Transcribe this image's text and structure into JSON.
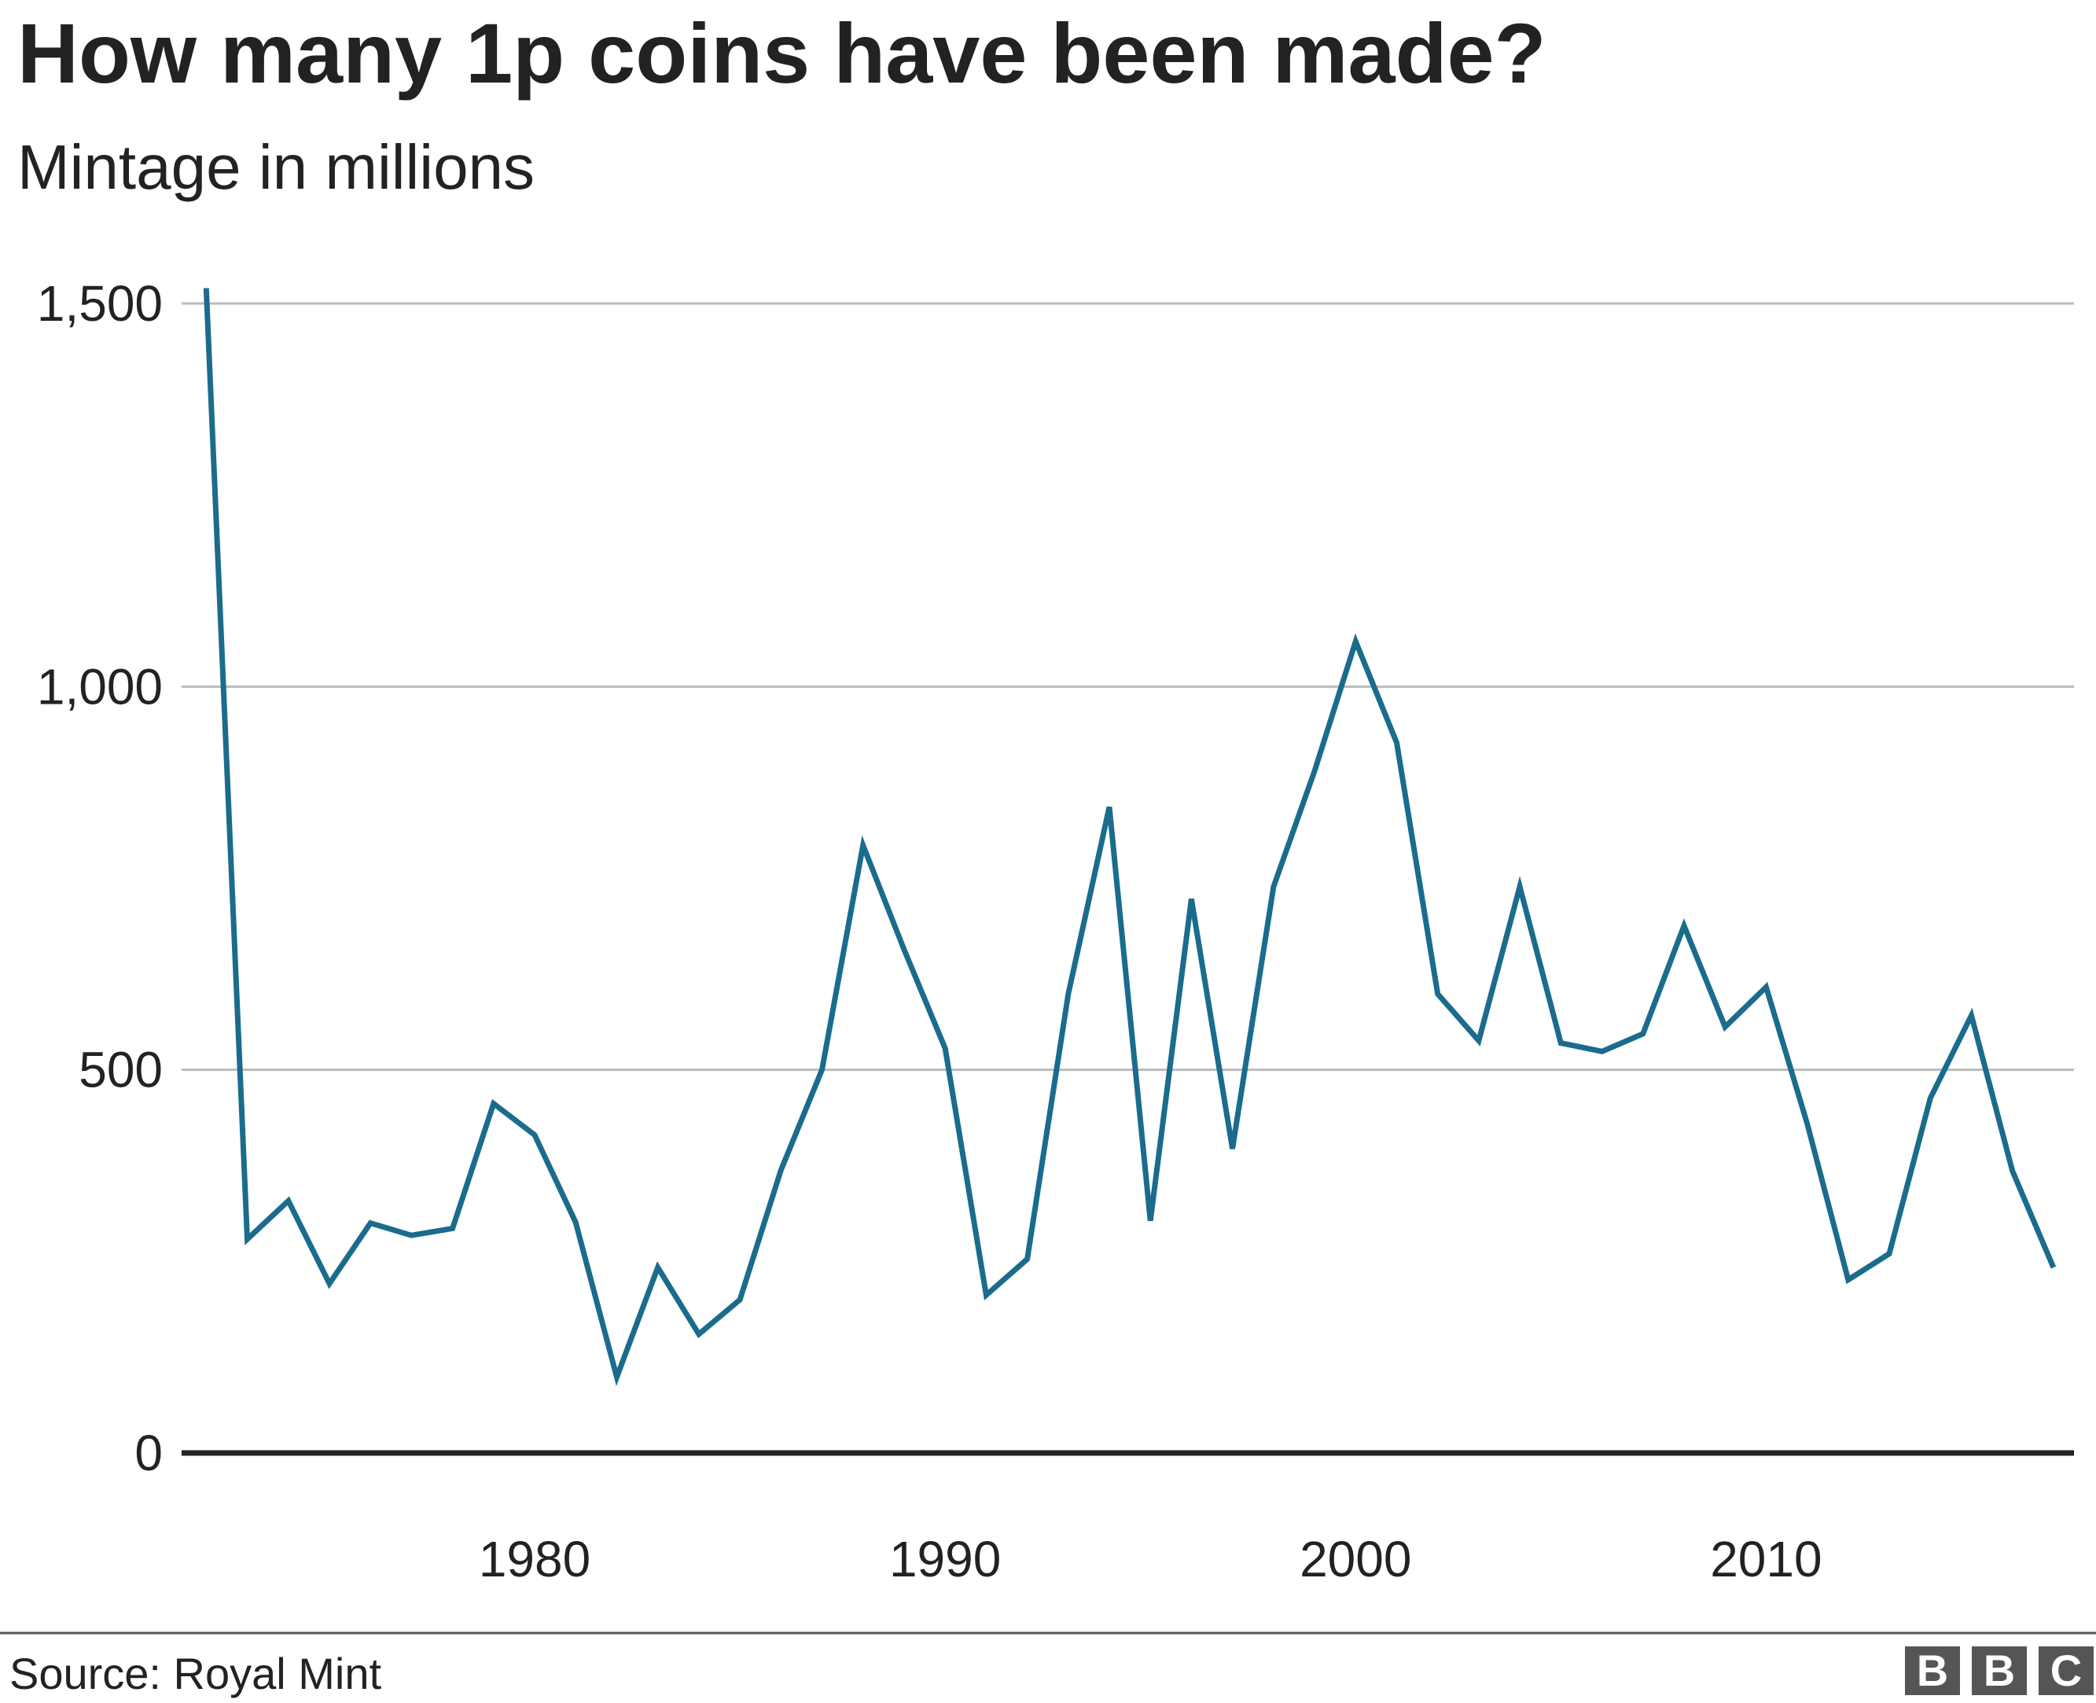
{
  "chart_data": {
    "type": "line",
    "title": "How many 1p coins have been made?",
    "subtitle": "Mintage in millions",
    "source": "Source: Royal Mint",
    "logo": [
      "B",
      "B",
      "C"
    ],
    "x": [
      1972,
      1973,
      1974,
      1975,
      1976,
      1977,
      1978,
      1979,
      1980,
      1981,
      1982,
      1983,
      1984,
      1985,
      1986,
      1987,
      1988,
      1989,
      1990,
      1991,
      1992,
      1993,
      1994,
      1995,
      1996,
      1997,
      1998,
      1999,
      2000,
      2001,
      2002,
      2003,
      2004,
      2005,
      2006,
      2007,
      2008,
      2009,
      2010,
      2011,
      2012,
      2013,
      2014,
      2015,
      2016,
      2017
    ],
    "values": [
      1520,
      279,
      329,
      221,
      300,
      284,
      293,
      456,
      415,
      301,
      99,
      242,
      155,
      200,
      369,
      500,
      793,
      657,
      528,
      206,
      253,
      599,
      843,
      303,
      723,
      397,
      739,
      890,
      1059,
      927,
      599,
      538,
      739,
      535,
      524,
      547,
      688,
      556,
      608,
      430,
      226,
      260,
      463,
      571,
      368,
      242
    ],
    "color": "#1b6c8c",
    "xlim": [
      1971.4,
      2017.5
    ],
    "xticks": [
      1980,
      1990,
      2000,
      2010
    ],
    "ylim": [
      0,
      1500
    ],
    "yticks": [
      0,
      500,
      {
        "value": 1000,
        "label": "1,000"
      },
      {
        "value": 1500,
        "label": "1,500"
      }
    ],
    "grid": true
  }
}
